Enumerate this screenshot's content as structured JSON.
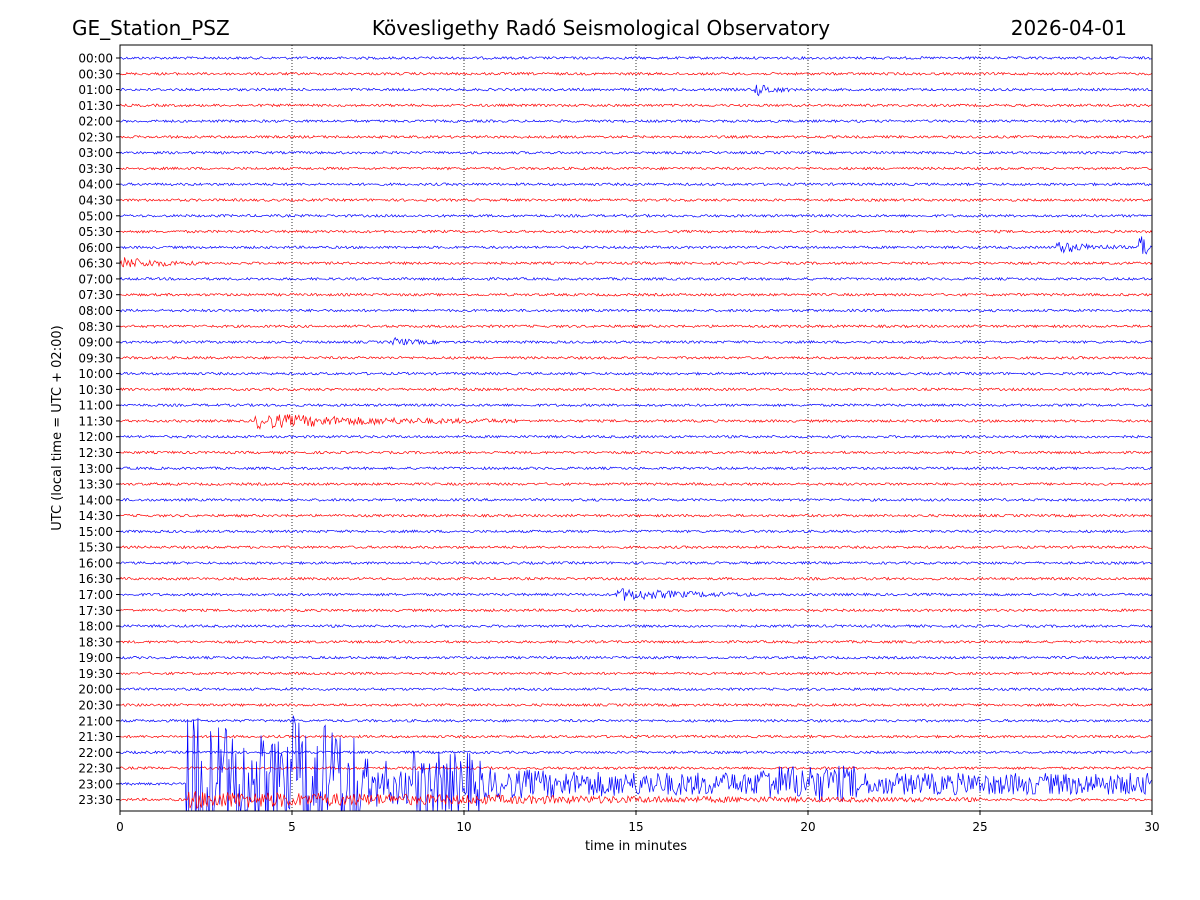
{
  "chart_data": {
    "type": "line",
    "title": "Kövesligethy Radó Seismological Observatory",
    "station": "GE_Station_PSZ",
    "date": "2026-04-01",
    "xlabel": "time in minutes",
    "ylabel": "UTC (local time = UTC + 02:00)",
    "xlim": [
      0,
      30
    ],
    "x_ticks": [
      0,
      5,
      10,
      15,
      20,
      25,
      30
    ],
    "x_tick_labels": [
      "0",
      "5",
      "10",
      "15",
      "20",
      "25",
      "30"
    ],
    "grid": "vertical dotted lines at 5, 10, 15, 20, 25",
    "row_labels": [
      "00:00",
      "00:30",
      "01:00",
      "01:30",
      "02:00",
      "02:30",
      "03:00",
      "03:30",
      "04:00",
      "04:30",
      "05:00",
      "05:30",
      "06:00",
      "06:30",
      "07:00",
      "07:30",
      "08:00",
      "08:30",
      "09:00",
      "09:30",
      "10:00",
      "10:30",
      "11:00",
      "11:30",
      "12:00",
      "12:30",
      "13:00",
      "13:30",
      "14:00",
      "14:30",
      "15:00",
      "15:30",
      "16:00",
      "16:30",
      "17:00",
      "17:30",
      "18:00",
      "18:30",
      "19:00",
      "19:30",
      "20:00",
      "20:30",
      "21:00",
      "21:30",
      "22:00",
      "22:30",
      "23:00",
      "23:30"
    ],
    "trace_colors": [
      "#0000ff",
      "#ff0000"
    ],
    "base_noise": 1.3,
    "events": [
      {
        "row": 2,
        "start_min": 18.4,
        "end_min": 19.5,
        "amplitude": 7
      },
      {
        "row": 12,
        "start_min": 27.2,
        "end_min": 29.2,
        "amplitude": 6
      },
      {
        "row": 12,
        "start_min": 29.6,
        "end_min": 30.0,
        "amplitude": 30
      },
      {
        "row": 13,
        "start_min": 0.0,
        "end_min": 2.3,
        "amplitude": 6
      },
      {
        "row": 18,
        "start_min": 7.9,
        "end_min": 9.2,
        "amplitude": 4
      },
      {
        "row": 23,
        "start_min": 3.9,
        "end_min": 11.5,
        "amplitude": 7
      },
      {
        "row": 34,
        "start_min": 14.4,
        "end_min": 18.5,
        "amplitude": 6
      },
      {
        "row": 46,
        "start_min": 1.9,
        "end_min": 30.0,
        "amplitude": 120
      },
      {
        "row": 47,
        "start_min": 1.9,
        "end_min": 25.0,
        "amplitude": 8
      }
    ]
  }
}
